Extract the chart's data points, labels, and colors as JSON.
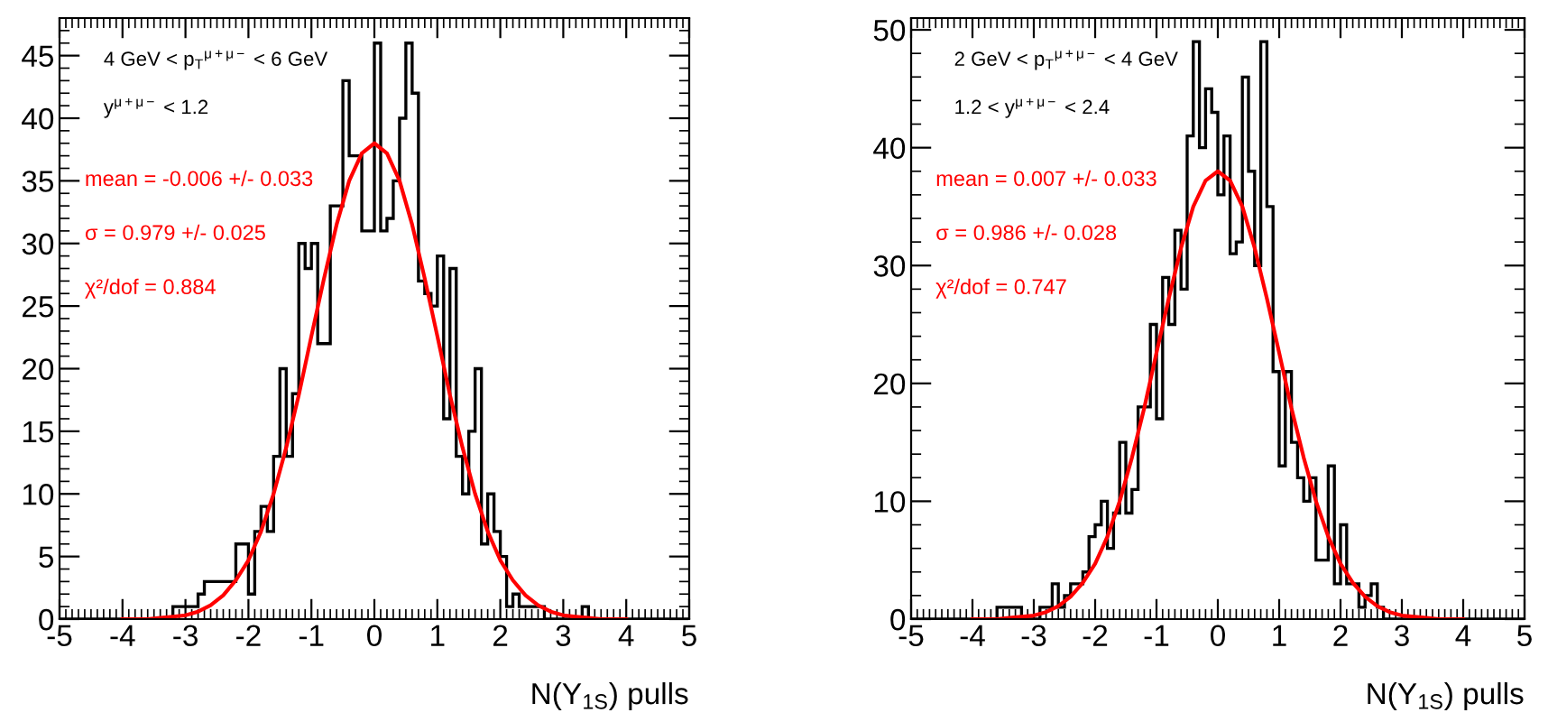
{
  "chart_data": [
    {
      "type": "histogram",
      "xlabel": "N(Υ$_{1S}$) pulls",
      "bins": [
        -5.0,
        -4.9,
        -4.8,
        -4.7,
        -4.6,
        -4.5,
        -4.4,
        -4.3,
        -4.2,
        -4.1,
        -4.0,
        -3.9,
        -3.8,
        -3.7,
        -3.6,
        -3.5,
        -3.4,
        -3.3,
        -3.2,
        -3.1,
        -3.0,
        -2.9,
        -2.8,
        -2.7,
        -2.6,
        -2.5,
        -2.4,
        -2.3,
        -2.2,
        -2.1,
        -2.0,
        -1.9,
        -1.8,
        -1.7,
        -1.6,
        -1.5,
        -1.4,
        -1.3,
        -1.2,
        -1.1,
        -1.0,
        -0.9,
        -0.8,
        -0.7,
        -0.6,
        -0.5,
        -0.4,
        -0.3,
        -0.2,
        -0.1,
        0.0,
        0.1,
        0.2,
        0.3,
        0.4,
        0.5,
        0.6,
        0.7,
        0.8,
        0.9,
        1.0,
        1.1,
        1.2,
        1.3,
        1.4,
        1.5,
        1.6,
        1.7,
        1.8,
        1.9,
        2.0,
        2.1,
        2.2,
        2.3,
        2.4,
        2.5,
        2.6,
        2.7,
        2.8,
        2.9,
        3.0,
        3.1,
        3.2,
        3.3,
        3.4,
        3.5,
        3.6,
        3.7,
        3.8,
        3.9,
        4.0,
        4.1,
        4.2,
        4.3,
        4.4,
        4.5,
        4.6,
        4.7,
        4.8,
        4.9,
        5.0
      ],
      "series": [
        {
          "type": "histogram",
          "color": "#000000",
          "values": [
            0,
            0,
            0,
            0,
            0,
            0,
            0,
            0,
            0,
            0,
            0,
            0,
            0,
            0,
            0,
            0,
            0,
            0,
            1,
            1,
            1,
            1,
            2,
            3,
            3,
            3,
            3,
            3,
            6,
            6,
            2,
            7,
            9,
            7,
            13,
            20,
            13,
            18,
            30,
            28,
            30,
            22,
            22,
            33,
            33,
            43,
            37,
            37,
            31,
            31,
            46,
            31,
            32,
            35,
            40,
            46,
            42,
            27,
            26,
            25,
            29,
            16,
            28,
            13,
            10,
            15,
            20,
            6,
            10,
            7,
            5,
            1,
            2,
            1,
            1,
            1,
            1,
            0,
            0,
            0,
            0,
            0,
            0,
            1,
            0,
            0,
            0,
            0,
            0,
            0,
            0,
            0,
            0,
            0,
            0,
            0,
            0,
            0,
            0,
            0
          ]
        },
        {
          "type": "line",
          "color": "#ff0000",
          "x": [
            -4.0,
            -3.8,
            -3.6,
            -3.4,
            -3.2,
            -3.0,
            -2.8,
            -2.6,
            -2.4,
            -2.2,
            -2.0,
            -1.8,
            -1.6,
            -1.4,
            -1.2,
            -1.0,
            -0.8,
            -0.6,
            -0.4,
            -0.2,
            0.0,
            0.2,
            0.4,
            0.6,
            0.8,
            1.0,
            1.2,
            1.4,
            1.6,
            1.8,
            2.0,
            2.2,
            2.4,
            2.6,
            2.8,
            3.0,
            3.2,
            3.4,
            3.6,
            3.8,
            4.0
          ],
          "values": [
            0.0,
            0.0,
            0.0,
            0.1,
            0.2,
            0.3,
            0.6,
            1.1,
            1.9,
            3.1,
            4.7,
            7.0,
            10.0,
            13.7,
            17.9,
            22.6,
            27.2,
            31.5,
            35.0,
            37.2,
            38.0,
            37.2,
            35.0,
            31.5,
            27.2,
            22.6,
            17.9,
            13.7,
            10.0,
            7.0,
            4.7,
            3.1,
            1.9,
            1.1,
            0.6,
            0.3,
            0.2,
            0.1,
            0.0,
            0.0,
            0.0
          ]
        }
      ],
      "xlim": [
        -5,
        5
      ],
      "xticks": [
        -5,
        -4,
        -3,
        -2,
        -1,
        0,
        1,
        2,
        3,
        4,
        5
      ],
      "ylim": [
        0,
        48
      ],
      "yticks": [
        0,
        5,
        10,
        15,
        20,
        25,
        30,
        35,
        40,
        45
      ],
      "grid": false,
      "annotations": [
        "4 GeV < p$_{T}$$^{μ+μ−}$ < 6 GeV",
        "y$^{μ+μ−}$ < 1.2",
        "mean = -0.006 +/- 0.033",
        "σ = 0.979 +/- 0.025",
        "χ²/dof = 0.884"
      ]
    },
    {
      "type": "histogram",
      "xlabel": "N(Υ$_{1S}$) pulls",
      "bins": [
        -5.0,
        -4.9,
        -4.8,
        -4.7,
        -4.6,
        -4.5,
        -4.4,
        -4.3,
        -4.2,
        -4.1,
        -4.0,
        -3.9,
        -3.8,
        -3.7,
        -3.6,
        -3.5,
        -3.4,
        -3.3,
        -3.2,
        -3.1,
        -3.0,
        -2.9,
        -2.8,
        -2.7,
        -2.6,
        -2.5,
        -2.4,
        -2.3,
        -2.2,
        -2.1,
        -2.0,
        -1.9,
        -1.8,
        -1.7,
        -1.6,
        -1.5,
        -1.4,
        -1.3,
        -1.2,
        -1.1,
        -1.0,
        -0.9,
        -0.8,
        -0.7,
        -0.6,
        -0.5,
        -0.4,
        -0.3,
        -0.2,
        -0.1,
        0.0,
        0.1,
        0.2,
        0.3,
        0.4,
        0.5,
        0.6,
        0.7,
        0.8,
        0.9,
        1.0,
        1.1,
        1.2,
        1.3,
        1.4,
        1.5,
        1.6,
        1.7,
        1.8,
        1.9,
        2.0,
        2.1,
        2.2,
        2.3,
        2.4,
        2.5,
        2.6,
        2.7,
        2.8,
        2.9,
        3.0,
        3.1,
        3.2,
        3.3,
        3.4,
        3.5,
        3.6,
        3.7,
        3.8,
        3.9,
        4.0,
        4.1,
        4.2,
        4.3,
        4.4,
        4.5,
        4.6,
        4.7,
        4.8,
        4.9,
        5.0
      ],
      "series": [
        {
          "type": "histogram",
          "color": "#000000",
          "values": [
            0,
            0,
            0,
            0,
            0,
            0,
            0,
            0,
            0,
            0,
            0,
            0,
            0,
            0,
            1,
            1,
            1,
            1,
            0,
            0,
            0,
            1,
            1,
            3,
            1,
            2,
            3,
            3,
            4,
            7,
            8,
            10,
            6,
            9,
            15,
            9,
            11,
            18,
            18,
            25,
            17,
            29,
            25,
            33,
            28,
            41,
            49,
            40,
            45,
            43,
            36,
            41,
            31,
            32,
            46,
            38,
            30,
            49,
            35,
            21,
            13,
            21,
            15,
            12,
            10,
            12,
            5,
            5,
            13,
            3,
            8,
            3,
            3,
            1,
            2,
            3,
            1,
            0,
            0,
            0,
            0,
            0,
            0,
            0,
            0,
            0,
            0,
            0,
            0,
            0,
            0,
            0,
            0,
            0,
            0,
            0,
            0,
            0,
            0,
            0
          ]
        },
        {
          "type": "line",
          "color": "#ff0000",
          "x": [
            -4.0,
            -3.8,
            -3.6,
            -3.4,
            -3.2,
            -3.0,
            -2.8,
            -2.6,
            -2.4,
            -2.2,
            -2.0,
            -1.8,
            -1.6,
            -1.4,
            -1.2,
            -1.0,
            -0.8,
            -0.6,
            -0.4,
            -0.2,
            0.0,
            0.2,
            0.4,
            0.6,
            0.8,
            1.0,
            1.2,
            1.4,
            1.6,
            1.8,
            2.0,
            2.2,
            2.4,
            2.6,
            2.8,
            3.0,
            3.2,
            3.4,
            3.6,
            3.8,
            4.0
          ],
          "values": [
            0.0,
            0.0,
            0.0,
            0.1,
            0.2,
            0.3,
            0.6,
            1.1,
            1.9,
            3.1,
            4.7,
            7.0,
            10.0,
            13.7,
            17.9,
            22.6,
            27.2,
            31.5,
            35.0,
            37.2,
            38.0,
            37.2,
            35.0,
            31.5,
            27.2,
            22.6,
            17.9,
            13.7,
            10.0,
            7.0,
            4.7,
            3.1,
            1.9,
            1.1,
            0.6,
            0.3,
            0.2,
            0.1,
            0.0,
            0.0,
            0.0
          ]
        }
      ],
      "xlim": [
        -5,
        5
      ],
      "xticks": [
        -5,
        -4,
        -3,
        -2,
        -1,
        0,
        1,
        2,
        3,
        4,
        5
      ],
      "ylim": [
        0,
        51
      ],
      "yticks": [
        0,
        10,
        20,
        30,
        40,
        50
      ],
      "grid": false,
      "annotations": [
        "2 GeV < p$_{T}$$^{μ+μ−}$ < 4 GeV",
        "1.2 < y$^{μ+μ−}$ < 2.4",
        "mean = 0.007 +/- 0.033",
        "σ = 0.986 +/- 0.028",
        "χ²/dof = 0.747"
      ]
    }
  ]
}
